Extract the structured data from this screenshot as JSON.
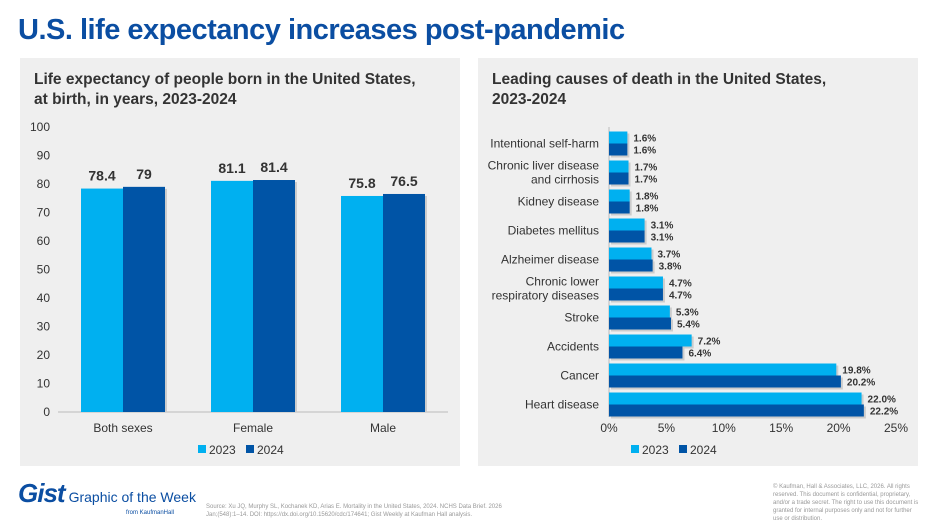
{
  "title": "U.S. life expectancy increases post-pandemic",
  "colors": {
    "2023": "#00b0f0",
    "2024": "#0054a6",
    "title": "#0b4ea2"
  },
  "chart_data": [
    {
      "type": "bar",
      "title": "Life expectancy of people born in the United States, at birth, in years, 2023-2024",
      "title_lines": [
        "Life expectancy of people born in the United States,",
        "at birth, in years, 2023-2024"
      ],
      "categories": [
        "Both sexes",
        "Female",
        "Male"
      ],
      "series": [
        {
          "name": "2023",
          "values": [
            78.4,
            81.1,
            75.8
          ]
        },
        {
          "name": "2024",
          "values": [
            79,
            81.4,
            76.5
          ]
        }
      ],
      "ylim": [
        0,
        100
      ],
      "yticks": [
        0,
        10,
        20,
        30,
        40,
        50,
        60,
        70,
        80,
        90,
        100
      ],
      "grid": false,
      "legend": "bottom"
    },
    {
      "type": "bar",
      "orientation": "horizontal",
      "title": "Leading causes of death in the United States, 2023-2024",
      "title_lines": [
        "Leading causes of death in the United States,",
        "2023-2024"
      ],
      "categories": [
        [
          "Intentional self-harm"
        ],
        [
          "Chronic liver disease",
          "and cirrhosis"
        ],
        [
          "Kidney disease"
        ],
        [
          "Diabetes mellitus"
        ],
        [
          "Alzheimer disease"
        ],
        [
          "Chronic lower",
          "respiratory diseases"
        ],
        [
          "Stroke"
        ],
        [
          "Accidents"
        ],
        [
          "Cancer"
        ],
        [
          "Heart disease"
        ]
      ],
      "series": [
        {
          "name": "2023",
          "values": [
            1.6,
            1.7,
            1.8,
            3.1,
            3.7,
            4.7,
            5.3,
            7.2,
            19.8,
            22.0
          ]
        },
        {
          "name": "2024",
          "values": [
            1.6,
            1.7,
            1.8,
            3.1,
            3.8,
            4.7,
            5.4,
            6.4,
            20.2,
            22.2
          ]
        }
      ],
      "xlim": [
        0,
        25
      ],
      "xticks": [
        "0%",
        "5%",
        "10%",
        "15%",
        "20%",
        "25%"
      ],
      "grid": false,
      "legend": "bottom"
    }
  ],
  "footer": {
    "logo": "Gist",
    "tagline": "Graphic of the Week",
    "from": "from KaufmanHall",
    "source": "Source: Xu JQ, Murphy SL, Kochanek KD, Arias E. Mortality in the United States, 2024. NCHS Data Brief. 2026 Jan;(548):1–14. DOI: https://dx.doi.org/10.15620/cdc/174641; Gist Weekly at Kaufman Hall analysis.",
    "copyright": "© Kaufman, Hall & Associates, LLC, 2026. All rights reserved. This document is confidential, proprietary, and/or a trade secret. The right to use this document is granted for internal purposes only and not for further use or distribution."
  }
}
